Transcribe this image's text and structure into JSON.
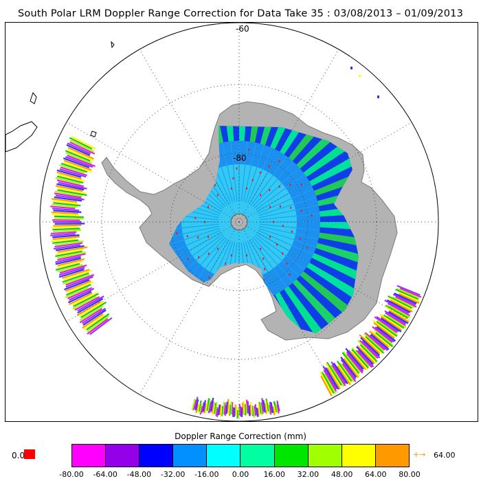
{
  "title": "South Polar LRM Doppler Range Correction for Data Take 35 : 03/08/2013 – 01/09/2013",
  "map": {
    "projection": "south polar stereographic",
    "lat_labels": [
      "-60",
      "-80"
    ],
    "land_color": "#b3b3b3",
    "coast_color": "#7a7a7a",
    "graticule_color": "#444444"
  },
  "colorbar": {
    "title": "Doppler Range Correction (mm)",
    "ticks": [
      "-80.00",
      "-64.00",
      "-48.00",
      "-32.00",
      "-16.00",
      "0.00",
      "16.00",
      "32.00",
      "48.00",
      "64.00",
      "80.00"
    ],
    "colors": [
      "#ff00ff",
      "#9400e8",
      "#0000ff",
      "#0090ff",
      "#00ffff",
      "#00ffa0",
      "#00e600",
      "#a0ff00",
      "#ffff00",
      "#ff9900"
    ],
    "zero_value": "0.0",
    "zero_color": "#ff0000",
    "over_arrow": "+→",
    "over_value": "64.00",
    "over_color": "#ff9900"
  }
}
